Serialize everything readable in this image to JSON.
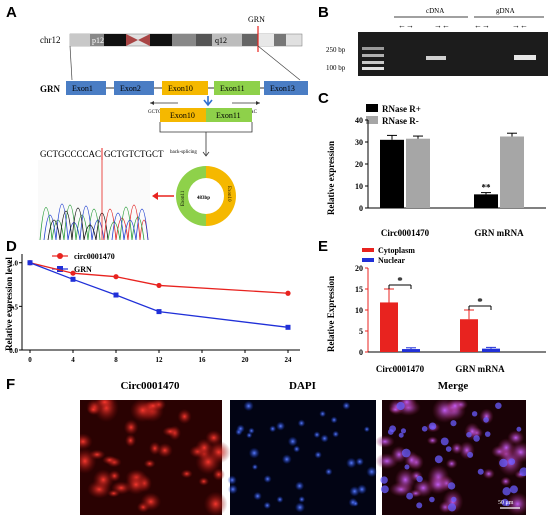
{
  "panels": {
    "A": "A",
    "B": "B",
    "C": "C",
    "D": "D",
    "E": "E",
    "F": "F"
  },
  "panelA": {
    "chromosome": "chr12",
    "band_p": "p12",
    "band_q": "q12",
    "gene_marker": "GRN",
    "gene_label": "GRN",
    "exons": [
      "Exon1",
      "Exon2",
      "Exon10",
      "Exon11",
      "Exon13"
    ],
    "primer_left": "GCTGT",
    "primer_right": "CCCAC",
    "junction_exons": [
      "Exon10",
      "Exon11"
    ],
    "seq_left": "GCTGCCCCAC",
    "seq_right": "GCTGTCTGCT",
    "back_splicing": "back-splicing",
    "circle_size": "483bp",
    "circle_exon_a": "Exon11",
    "circle_exon_b": "Exon10"
  },
  "panelB": {
    "marker": "M",
    "cdna": "cDNA",
    "gdna": "gDNA",
    "bp250": "250 bp",
    "bp100": "100 bp",
    "arrows": [
      "←→",
      "→←",
      "←→",
      "→←"
    ]
  },
  "panelC": {
    "legend": [
      "RNase R+",
      "RNase R-"
    ],
    "ylabel": "Relative expression",
    "yticks": [
      "0",
      "10",
      "20",
      "30",
      "40"
    ],
    "categories": [
      "Circ0001470",
      "GRN mRNA"
    ],
    "sig": "**"
  },
  "panelD": {
    "legend": [
      "circ0001470",
      "GRN"
    ],
    "ylabel": "Relative expression level",
    "yticks": [
      "0.0",
      "0.5",
      "1.0"
    ],
    "xticks": [
      "0",
      "4",
      "8",
      "12",
      "16",
      "20",
      "24"
    ]
  },
  "panelE": {
    "legend": [
      "Cytoplasm",
      "Nuclear"
    ],
    "ylabel": "Relative Expression",
    "yticks": [
      "0",
      "5",
      "10",
      "15",
      "20"
    ],
    "categories": [
      "Circ0001470",
      "GRN mRNA"
    ],
    "sig": [
      "*",
      "*"
    ]
  },
  "panelF": {
    "titles": [
      "Circ0001470",
      "DAPI",
      "Merge"
    ],
    "scale": "50 μm"
  },
  "colors": {
    "black": "#000000",
    "gray": "#a6a6a6",
    "red": "#e8231f",
    "blue": "#2030d8",
    "exon_blue": "#4a7dc4",
    "exon_orange": "#f5b800",
    "exon_green": "#8ed14a"
  },
  "chart_data": [
    {
      "type": "bar",
      "panel": "C",
      "categories": [
        "Circ0001470",
        "GRN mRNA"
      ],
      "series": [
        {
          "name": "RNase R+",
          "values": [
            31,
            6.2
          ],
          "errors": [
            2,
            0.8
          ]
        },
        {
          "name": "RNase R-",
          "values": [
            31.5,
            32.5
          ],
          "errors": [
            1.2,
            1.5
          ]
        }
      ],
      "ylabel": "Relative expression",
      "ylim": [
        0,
        40
      ],
      "annotations": [
        "**"
      ]
    },
    {
      "type": "line",
      "panel": "D",
      "x": [
        0,
        4,
        8,
        12,
        24
      ],
      "series": [
        {
          "name": "circ0001470",
          "values": [
            1.0,
            0.88,
            0.84,
            0.74,
            0.65
          ]
        },
        {
          "name": "GRN",
          "values": [
            1.0,
            0.81,
            0.63,
            0.44,
            0.26
          ]
        }
      ],
      "ylabel": "Relative expression level",
      "xlim": [
        0,
        24
      ],
      "ylim": [
        0,
        1.1
      ]
    },
    {
      "type": "bar",
      "panel": "E",
      "categories": [
        "Circ0001470",
        "GRN mRNA"
      ],
      "series": [
        {
          "name": "Cytoplasm",
          "values": [
            11.8,
            7.8
          ],
          "errors": [
            3.2,
            2.2
          ]
        },
        {
          "name": "Nuclear",
          "values": [
            0.7,
            0.8
          ],
          "errors": [
            0.3,
            0.3
          ]
        }
      ],
      "ylabel": "Relative Expression",
      "ylim": [
        0,
        20
      ],
      "annotations": [
        "*",
        "*"
      ]
    }
  ]
}
